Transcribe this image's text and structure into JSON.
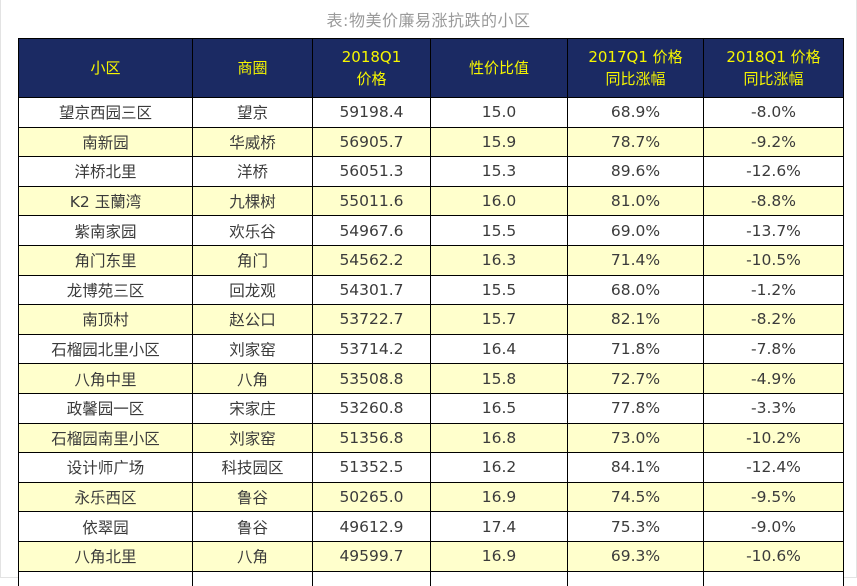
{
  "page": {
    "title": "表:物美价廉易涨抗跌的小区"
  },
  "chart_data": {
    "type": "table",
    "title": "表:物美价廉易涨抗跌的小区",
    "columns": [
      "小区",
      "商圈",
      "2018Q1 价格",
      "性价比值",
      "2017Q1 价格同比涨幅",
      "2018Q1 价格同比涨幅"
    ],
    "rows": [
      [
        "望京西园三区",
        "望京",
        "59198.4",
        "15.0",
        "68.9%",
        "-8.0%"
      ],
      [
        "南新园",
        "华威桥",
        "56905.7",
        "15.9",
        "78.7%",
        "-9.2%"
      ],
      [
        "洋桥北里",
        "洋桥",
        "56051.3",
        "15.3",
        "89.6%",
        "-12.6%"
      ],
      [
        "K2 玉蘭湾",
        "九棵树",
        "55011.6",
        "16.0",
        "81.0%",
        "-8.8%"
      ],
      [
        "紫南家园",
        "欢乐谷",
        "54967.6",
        "15.5",
        "69.0%",
        "-13.7%"
      ],
      [
        "角门东里",
        "角门",
        "54562.2",
        "16.3",
        "71.4%",
        "-10.5%"
      ],
      [
        "龙博苑三区",
        "回龙观",
        "54301.7",
        "15.5",
        "68.0%",
        "-1.2%"
      ],
      [
        "南顶村",
        "赵公口",
        "53722.7",
        "15.7",
        "82.1%",
        "-8.2%"
      ],
      [
        "石榴园北里小区",
        "刘家窑",
        "53714.2",
        "16.4",
        "71.8%",
        "-7.8%"
      ],
      [
        "八角中里",
        "八角",
        "53508.8",
        "15.8",
        "72.7%",
        "-4.9%"
      ],
      [
        "政馨园一区",
        "宋家庄",
        "53260.8",
        "16.5",
        "77.8%",
        "-3.3%"
      ],
      [
        "石榴园南里小区",
        "刘家窑",
        "51356.8",
        "16.8",
        "73.0%",
        "-10.2%"
      ],
      [
        "设计师广场",
        "科技园区",
        "51352.5",
        "16.2",
        "84.1%",
        "-12.4%"
      ],
      [
        "永乐西区",
        "鲁谷",
        "50265.0",
        "16.9",
        "74.5%",
        "-9.5%"
      ],
      [
        "依翠园",
        "鲁谷",
        "49612.9",
        "17.4",
        "75.3%",
        "-9.0%"
      ],
      [
        "八角北里",
        "八角",
        "49599.7",
        "16.9",
        "69.3%",
        "-10.6%"
      ]
    ],
    "layout": {
      "header_rows": 1,
      "alternating_row_colors": true,
      "grid": true,
      "clipped_extra_row_at_bottom": true
    }
  },
  "table": {
    "display_headers": [
      "小区",
      "商圈",
      "2018Q1\n价格",
      "性价比值",
      "2017Q1 价格\n同比涨幅",
      "2018Q1 价格\n同比涨幅"
    ],
    "col_keys": [
      "district",
      "biz-area",
      "price-2018q1",
      "value-ratio",
      "yoy-2017q1",
      "yoy-2018q1"
    ]
  },
  "colors": {
    "header_bg": "#1b2a63",
    "header_text": "#f6f600",
    "row_bg": "#ffffff",
    "row_alt_bg": "#ffffcc",
    "cell_text": "#3b3b3b",
    "border": "#000000",
    "title_text": "#9a9a9a"
  }
}
